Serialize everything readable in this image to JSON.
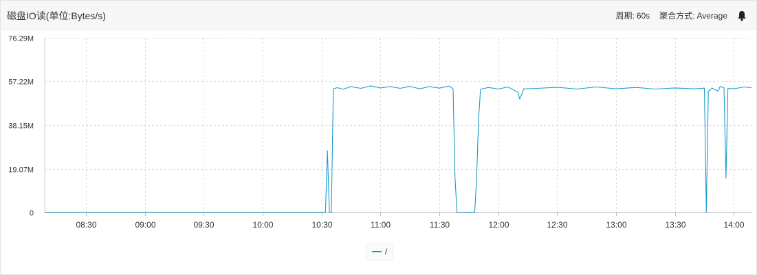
{
  "header": {
    "title": "磁盘IO读(单位:Bytes/s)",
    "period_label": "周期:",
    "period_value": "60s",
    "aggregation_label": "聚合方式:",
    "aggregation_value": "Average",
    "alert_icon": "bell-icon"
  },
  "colors": {
    "series": "#1a9bcc",
    "grid": "#dcdcdc",
    "axis_text": "#333333"
  },
  "chart_data": {
    "type": "line",
    "title": "磁盘IO读(单位:Bytes/s)",
    "xlabel": "",
    "ylabel": "",
    "unit": "Bytes/s",
    "x_range": [
      "08:09",
      "14:09"
    ],
    "ylim": [
      0,
      76.29
    ],
    "y_unit": "M",
    "y_ticks": [
      {
        "value": 0,
        "label": "0"
      },
      {
        "value": 19.07,
        "label": "19.07M"
      },
      {
        "value": 38.15,
        "label": "38.15M"
      },
      {
        "value": 57.22,
        "label": "57.22M"
      },
      {
        "value": 76.29,
        "label": "76.29M"
      }
    ],
    "x_ticks": [
      "08:30",
      "09:00",
      "09:30",
      "10:00",
      "10:30",
      "11:00",
      "11:30",
      "12:00",
      "12:30",
      "13:00",
      "13:30",
      "14:00"
    ],
    "grid": true,
    "legend_position": "bottom-center",
    "series": [
      {
        "name": "/",
        "points": [
          [
            "08:09",
            0
          ],
          [
            "10:32",
            0
          ],
          [
            "10:33",
            27
          ],
          [
            "10:34",
            0
          ],
          [
            "10:35",
            0
          ],
          [
            "10:36",
            54
          ],
          [
            "10:38",
            54.5
          ],
          [
            "10:41",
            53.8
          ],
          [
            "10:45",
            55
          ],
          [
            "10:50",
            54.2
          ],
          [
            "10:55",
            55.3
          ],
          [
            "11:00",
            54.4
          ],
          [
            "11:05",
            55
          ],
          [
            "11:10",
            54.2
          ],
          [
            "11:15",
            55.1
          ],
          [
            "11:20",
            54
          ],
          [
            "11:25",
            55
          ],
          [
            "11:30",
            54.3
          ],
          [
            "11:35",
            55.2
          ],
          [
            "11:37",
            54
          ],
          [
            "11:38",
            15
          ],
          [
            "11:39",
            0
          ],
          [
            "11:48",
            0
          ],
          [
            "11:49",
            15
          ],
          [
            "11:50",
            41
          ],
          [
            "11:51",
            53.8
          ],
          [
            "11:55",
            54.6
          ],
          [
            "12:00",
            53.9
          ],
          [
            "12:05",
            54.8
          ],
          [
            "12:10",
            52.5
          ],
          [
            "12:11",
            49.5
          ],
          [
            "12:13",
            54
          ],
          [
            "12:20",
            54.2
          ],
          [
            "12:30",
            54.7
          ],
          [
            "12:40",
            53.9
          ],
          [
            "12:50",
            54.8
          ],
          [
            "13:00",
            54
          ],
          [
            "13:10",
            54.6
          ],
          [
            "13:20",
            53.9
          ],
          [
            "13:30",
            54.4
          ],
          [
            "13:40",
            54
          ],
          [
            "13:45",
            54.3
          ],
          [
            "13:46",
            0
          ],
          [
            "13:47",
            53
          ],
          [
            "13:49",
            54.3
          ],
          [
            "13:52",
            53
          ],
          [
            "13:53",
            55
          ],
          [
            "13:55",
            54.5
          ],
          [
            "13:56",
            15
          ],
          [
            "13:57",
            54.2
          ],
          [
            "14:00",
            54
          ],
          [
            "14:05",
            54.8
          ],
          [
            "14:09",
            54.5
          ]
        ]
      }
    ]
  }
}
